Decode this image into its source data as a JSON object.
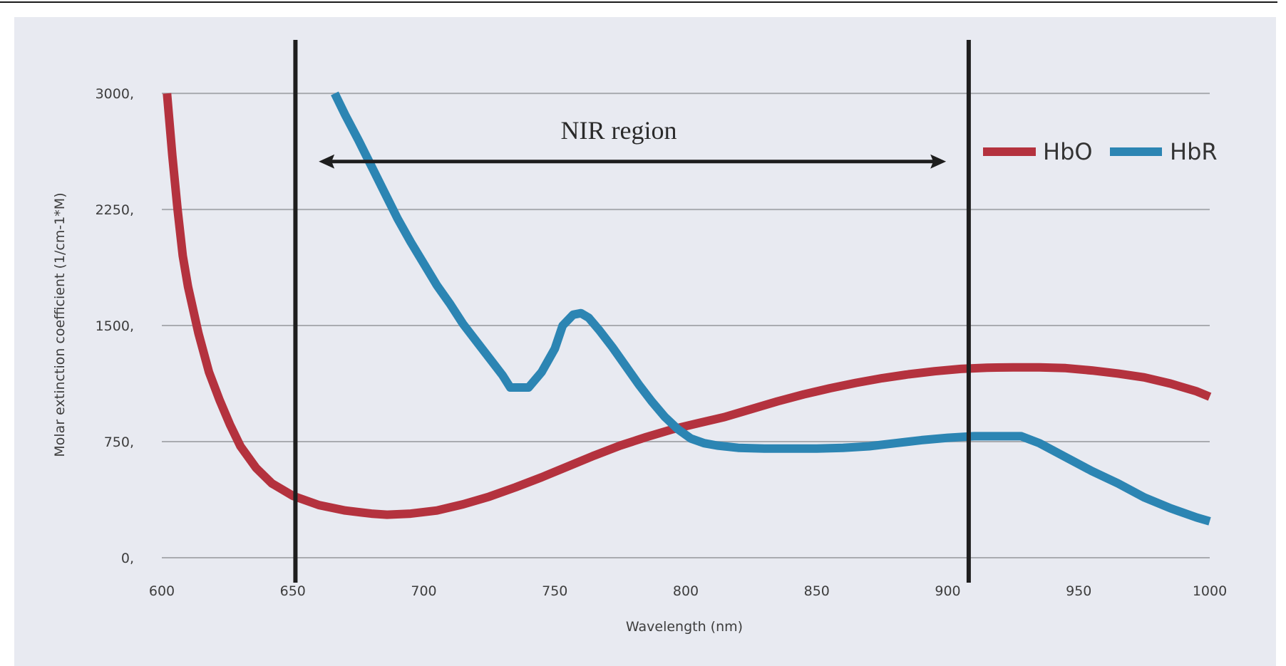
{
  "chart_data": {
    "type": "line",
    "title": "",
    "xlabel": "Wavelength (nm)",
    "ylabel": "Molar extinction coefficient  (1/cm-1*M)",
    "xlim": [
      600,
      1000
    ],
    "ylim": [
      0,
      3000
    ],
    "x_ticks": [
      "600",
      "650",
      "700",
      "750",
      "800",
      "850",
      "900",
      "950",
      "1000"
    ],
    "x_tick_values": [
      600,
      650,
      700,
      750,
      800,
      850,
      900,
      950,
      1000
    ],
    "y_ticks": [
      "0,",
      "750,",
      "1500,",
      "2250,",
      "3000,"
    ],
    "y_tick_values": [
      0,
      750,
      1500,
      2250,
      3000
    ],
    "grid": "horizontal",
    "legend_position": "upper right",
    "series": [
      {
        "name": "HbO",
        "color": "#b4323e",
        "x": [
          602,
          604,
          606,
          608,
          610,
          614,
          618,
          622,
          626,
          630,
          636,
          642,
          650,
          660,
          670,
          680,
          686,
          695,
          705,
          715,
          725,
          735,
          745,
          755,
          765,
          775,
          785,
          795,
          805,
          815,
          825,
          835,
          845,
          855,
          865,
          875,
          885,
          895,
          905,
          915,
          925,
          935,
          945,
          955,
          965,
          975,
          985,
          995,
          1000
        ],
        "values": [
          3000,
          2600,
          2250,
          1950,
          1750,
          1450,
          1200,
          1020,
          860,
          720,
          580,
          480,
          400,
          340,
          305,
          285,
          278,
          285,
          305,
          345,
          395,
          455,
          520,
          590,
          660,
          725,
          780,
          830,
          870,
          910,
          960,
          1010,
          1055,
          1095,
          1130,
          1160,
          1185,
          1205,
          1220,
          1228,
          1230,
          1230,
          1225,
          1210,
          1190,
          1165,
          1125,
          1075,
          1040
        ]
      },
      {
        "name": "HbR",
        "color": "#2c85b3",
        "x": [
          666,
          670,
          675,
          680,
          685,
          690,
          695,
          700,
          705,
          710,
          715,
          720,
          725,
          730,
          733,
          740,
          745,
          750,
          753,
          757,
          760,
          763,
          767,
          772,
          777,
          782,
          787,
          792,
          797,
          802,
          807,
          812,
          820,
          830,
          840,
          850,
          860,
          870,
          880,
          890,
          900,
          910,
          920,
          928,
          935,
          945,
          955,
          965,
          975,
          985,
          995,
          1000
        ],
        "values": [
          3000,
          2860,
          2700,
          2530,
          2360,
          2190,
          2040,
          1900,
          1760,
          1640,
          1510,
          1400,
          1290,
          1180,
          1100,
          1100,
          1200,
          1350,
          1500,
          1570,
          1580,
          1550,
          1470,
          1360,
          1240,
          1120,
          1010,
          910,
          830,
          770,
          740,
          725,
          710,
          705,
          705,
          705,
          710,
          720,
          740,
          760,
          775,
          785,
          785,
          785,
          740,
          650,
          560,
          480,
          390,
          320,
          260,
          235
        ]
      }
    ],
    "annotations": [
      {
        "type": "vertical_line",
        "x": 651
      },
      {
        "type": "vertical_line",
        "x": 908
      },
      {
        "type": "double_arrow",
        "x_start": 661,
        "x_end": 898,
        "y": 2560,
        "label": "NIR region"
      }
    ]
  },
  "legend": {
    "items": [
      {
        "label": "HbO",
        "color": "#b4323e"
      },
      {
        "label": "HbR",
        "color": "#2c85b3"
      }
    ]
  },
  "annotation_text": {
    "nir_label": "NIR region"
  },
  "axes": {
    "xlabel": "Wavelength (nm)",
    "ylabel": "Molar extinction coefficient  (1/cm-1*M)"
  }
}
